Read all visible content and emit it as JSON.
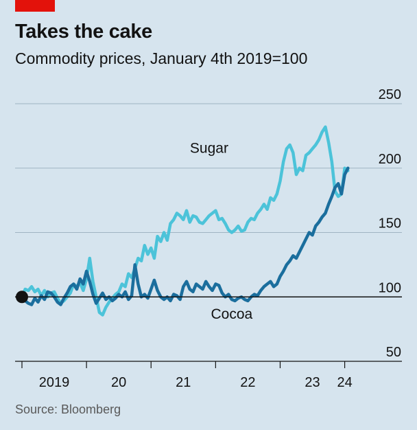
{
  "header": {
    "title": "Takes the cake",
    "subtitle": "Commodity prices, January 4th 2019=100"
  },
  "source": "Source: Bloomberg",
  "colors": {
    "sugar": "#4cc3d9",
    "cocoa": "#1b6e9d",
    "background": "#d6e4ee",
    "accent": "#e3120b"
  },
  "chart_data": {
    "type": "line",
    "title": "Takes the cake",
    "subtitle": "Commodity prices, January 4th 2019=100",
    "ylim": [
      50,
      250
    ],
    "ylabel": "",
    "xlabel": "",
    "y_ticks": [
      50,
      100,
      150,
      200,
      250
    ],
    "y_tick_labels": [
      "50",
      "100",
      "150",
      "200",
      "250"
    ],
    "x_ticks": [
      2019,
      2020,
      2021,
      2022,
      2023,
      2024
    ],
    "x_tick_labels": [
      "2019",
      "20",
      "21",
      "22",
      "23",
      "24"
    ],
    "xlim": [
      2019,
      2024.1
    ],
    "grid": true,
    "series": [
      {
        "name": "Sugar",
        "x": [
          2019.0,
          2019.05,
          2019.1,
          2019.15,
          2019.2,
          2019.25,
          2019.3,
          2019.35,
          2019.4,
          2019.45,
          2019.5,
          2019.55,
          2019.6,
          2019.65,
          2019.7,
          2019.75,
          2019.8,
          2019.85,
          2019.9,
          2019.95,
          2020.0,
          2020.05,
          2020.1,
          2020.15,
          2020.2,
          2020.25,
          2020.3,
          2020.35,
          2020.4,
          2020.45,
          2020.5,
          2020.55,
          2020.6,
          2020.65,
          2020.7,
          2020.75,
          2020.8,
          2020.85,
          2020.9,
          2020.95,
          2021.0,
          2021.05,
          2021.1,
          2021.15,
          2021.2,
          2021.25,
          2021.3,
          2021.35,
          2021.4,
          2021.45,
          2021.5,
          2021.55,
          2021.6,
          2021.65,
          2021.7,
          2021.75,
          2021.8,
          2021.85,
          2021.9,
          2021.95,
          2022.0,
          2022.05,
          2022.1,
          2022.15,
          2022.2,
          2022.25,
          2022.3,
          2022.35,
          2022.4,
          2022.45,
          2022.5,
          2022.55,
          2022.6,
          2022.65,
          2022.7,
          2022.75,
          2022.8,
          2022.85,
          2022.9,
          2022.95,
          2023.0,
          2023.05,
          2023.1,
          2023.15,
          2023.2,
          2023.25,
          2023.3,
          2023.35,
          2023.4,
          2023.45,
          2023.5,
          2023.55,
          2023.6,
          2023.65,
          2023.7,
          2023.75,
          2023.8,
          2023.85,
          2023.9,
          2023.95,
          2024.0,
          2024.05
        ],
        "values": [
          100,
          106,
          105,
          108,
          104,
          106,
          101,
          105,
          100,
          103,
          104,
          99,
          95,
          97,
          100,
          103,
          110,
          108,
          111,
          105,
          114,
          130,
          112,
          100,
          88,
          86,
          92,
          96,
          99,
          102,
          104,
          110,
          108,
          118,
          115,
          122,
          130,
          128,
          140,
          133,
          138,
          130,
          147,
          143,
          150,
          144,
          157,
          160,
          165,
          163,
          160,
          167,
          158,
          163,
          162,
          158,
          157,
          160,
          163,
          165,
          167,
          160,
          161,
          157,
          152,
          150,
          152,
          155,
          151,
          152,
          158,
          161,
          160,
          165,
          168,
          172,
          168,
          177,
          175,
          180,
          190,
          205,
          215,
          218,
          212,
          195,
          200,
          198,
          210,
          212,
          215,
          218,
          222,
          228,
          232,
          220,
          205,
          182,
          178,
          180,
          200,
          198
        ]
      },
      {
        "name": "Cocoa",
        "x": [
          2019.0,
          2019.05,
          2019.1,
          2019.15,
          2019.2,
          2019.25,
          2019.3,
          2019.35,
          2019.4,
          2019.45,
          2019.5,
          2019.55,
          2019.6,
          2019.65,
          2019.7,
          2019.75,
          2019.8,
          2019.85,
          2019.9,
          2019.95,
          2020.0,
          2020.05,
          2020.1,
          2020.15,
          2020.2,
          2020.25,
          2020.3,
          2020.35,
          2020.4,
          2020.45,
          2020.5,
          2020.55,
          2020.6,
          2020.65,
          2020.7,
          2020.75,
          2020.8,
          2020.85,
          2020.9,
          2020.95,
          2021.0,
          2021.05,
          2021.1,
          2021.15,
          2021.2,
          2021.25,
          2021.3,
          2021.35,
          2021.4,
          2021.45,
          2021.5,
          2021.55,
          2021.6,
          2021.65,
          2021.7,
          2021.75,
          2021.8,
          2021.85,
          2021.9,
          2021.95,
          2022.0,
          2022.05,
          2022.1,
          2022.15,
          2022.2,
          2022.25,
          2022.3,
          2022.35,
          2022.4,
          2022.45,
          2022.5,
          2022.55,
          2022.6,
          2022.65,
          2022.7,
          2022.75,
          2022.8,
          2022.85,
          2022.9,
          2022.95,
          2023.0,
          2023.05,
          2023.1,
          2023.15,
          2023.2,
          2023.25,
          2023.3,
          2023.35,
          2023.4,
          2023.45,
          2023.5,
          2023.55,
          2023.6,
          2023.65,
          2023.7,
          2023.75,
          2023.8,
          2023.85,
          2023.9,
          2023.95,
          2024.0,
          2024.05
        ],
        "values": [
          100,
          97,
          95,
          94,
          99,
          96,
          101,
          98,
          104,
          103,
          100,
          96,
          94,
          99,
          103,
          108,
          110,
          106,
          114,
          110,
          120,
          112,
          102,
          95,
          99,
          103,
          98,
          100,
          97,
          99,
          102,
          100,
          104,
          98,
          101,
          125,
          110,
          100,
          102,
          99,
          106,
          113,
          105,
          100,
          98,
          100,
          97,
          102,
          101,
          98,
          108,
          112,
          106,
          104,
          110,
          108,
          106,
          112,
          108,
          105,
          110,
          109,
          103,
          100,
          102,
          98,
          97,
          99,
          100,
          98,
          97,
          100,
          102,
          101,
          105,
          108,
          110,
          112,
          108,
          110,
          116,
          120,
          125,
          128,
          132,
          130,
          135,
          140,
          145,
          150,
          148,
          155,
          158,
          162,
          165,
          172,
          178,
          185,
          188,
          180,
          195,
          200
        ]
      }
    ],
    "annotations": [
      {
        "text": "Sugar",
        "x": 2021.9,
        "y": 212
      },
      {
        "text": "Cocoa",
        "x": 2022.25,
        "y": 83
      }
    ]
  }
}
